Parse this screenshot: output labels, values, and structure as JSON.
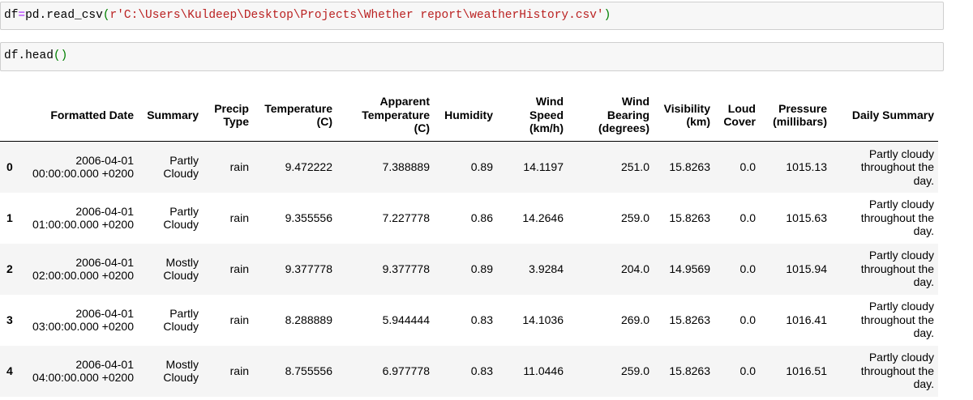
{
  "cells": [
    {
      "tokens": [
        {
          "text": "df"
        },
        {
          "text": "=",
          "color": "#aa22ff"
        },
        {
          "text": "pd.read_csv"
        },
        {
          "text": "(",
          "color": "#008000"
        },
        {
          "text": "r'C:\\Users\\Kuldeep\\Desktop\\Projects\\Whether report\\weatherHistory.csv'",
          "color": "#ba2121"
        },
        {
          "text": ")",
          "color": "#008000"
        }
      ]
    },
    {
      "tokens": [
        {
          "text": "df.head"
        },
        {
          "text": "()",
          "color": "#008000"
        }
      ]
    }
  ],
  "table": {
    "columns": [
      [
        "Formatted Date"
      ],
      [
        "Summary"
      ],
      [
        "Precip",
        "Type"
      ],
      [
        "Temperature",
        "(C)"
      ],
      [
        "Apparent",
        "Temperature",
        "(C)"
      ],
      [
        "Humidity"
      ],
      [
        "Wind",
        "Speed",
        "(km/h)"
      ],
      [
        "Wind",
        "Bearing",
        "(degrees)"
      ],
      [
        "Visibility",
        "(km)"
      ],
      [
        "Loud",
        "Cover"
      ],
      [
        "Pressure",
        "(millibars)"
      ],
      [
        "Daily Summary"
      ]
    ],
    "rows": [
      [
        "0",
        "2006-04-01 00:00:00.000 +0200",
        "Partly Cloudy",
        "rain",
        "9.472222",
        "7.388889",
        "0.89",
        "14.1197",
        "251.0",
        "15.8263",
        "0.0",
        "1015.13",
        "Partly cloudy throughout the day."
      ],
      [
        "1",
        "2006-04-01 01:00:00.000 +0200",
        "Partly Cloudy",
        "rain",
        "9.355556",
        "7.227778",
        "0.86",
        "14.2646",
        "259.0",
        "15.8263",
        "0.0",
        "1015.63",
        "Partly cloudy throughout the day."
      ],
      [
        "2",
        "2006-04-01 02:00:00.000 +0200",
        "Mostly Cloudy",
        "rain",
        "9.377778",
        "9.377778",
        "0.89",
        "3.9284",
        "204.0",
        "14.9569",
        "0.0",
        "1015.94",
        "Partly cloudy throughout the day."
      ],
      [
        "3",
        "2006-04-01 03:00:00.000 +0200",
        "Partly Cloudy",
        "rain",
        "8.288889",
        "5.944444",
        "0.83",
        "14.1036",
        "269.0",
        "15.8263",
        "0.0",
        "1016.41",
        "Partly cloudy throughout the day."
      ],
      [
        "4",
        "2006-04-01 04:00:00.000 +0200",
        "Mostly Cloudy",
        "rain",
        "8.755556",
        "6.977778",
        "0.83",
        "11.0446",
        "259.0",
        "15.8263",
        "0.0",
        "1016.51",
        "Partly cloudy throughout the day."
      ]
    ]
  }
}
